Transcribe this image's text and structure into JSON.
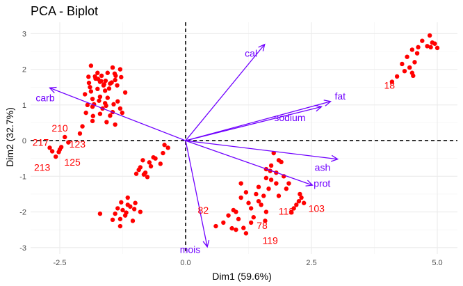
{
  "chart_data": {
    "type": "scatter",
    "title": "PCA - Biplot",
    "xlabel": "Dim1 (59.6%)",
    "ylabel": "Dim2 (32.7%)",
    "xlim": [
      -3.08,
      5.4
    ],
    "ylim": [
      -3.18,
      3.32
    ],
    "xticks": [
      -2.5,
      0,
      2.5,
      5
    ],
    "xtick_labels": [
      "-2.5",
      "0.0",
      "2.5",
      "5.0"
    ],
    "yticks": [
      -3,
      -2,
      -1,
      0,
      1,
      2,
      3
    ],
    "ytick_labels": [
      "-3",
      "-2",
      "-1",
      "0",
      "1",
      "2",
      "3"
    ],
    "grid": true,
    "reference_lines": {
      "x": 0,
      "y": 0,
      "style": "dashed"
    },
    "colors": {
      "points": "#ff0000",
      "variables": "#7000ff",
      "grid": "#ebebeb",
      "reference": "#000000"
    },
    "points": [
      [
        -1.3,
        2.0
      ],
      [
        -1.63,
        1.55
      ],
      [
        -1.88,
        2.1
      ],
      [
        -1.39,
        1.82
      ],
      [
        -1.84,
        0.69
      ],
      [
        -1.68,
        1.67
      ],
      [
        -1.28,
        1.78
      ],
      [
        -1.85,
        1.17
      ],
      [
        -1.93,
        1.79
      ],
      [
        -1.74,
        1.73
      ],
      [
        -1.7,
        1.23
      ],
      [
        -1.7,
        1.65
      ],
      [
        -1.8,
        1.8
      ],
      [
        -1.5,
        1.6
      ],
      [
        -1.6,
        1.4
      ],
      [
        -1.9,
        1.5
      ],
      [
        -1.4,
        1.7
      ],
      [
        -1.75,
        1.9
      ],
      [
        -1.55,
        1.2
      ],
      [
        -1.65,
        0.9
      ],
      [
        -1.45,
        0.8
      ],
      [
        -1.85,
        0.95
      ],
      [
        -1.95,
        1.0
      ],
      [
        -1.6,
        1.05
      ],
      [
        -1.35,
        1.1
      ],
      [
        -2.0,
        1.3
      ],
      [
        -1.2,
        1.35
      ],
      [
        -1.7,
        0.75
      ],
      [
        -1.5,
        0.7
      ],
      [
        -1.55,
        1.9
      ],
      [
        -1.45,
        2.05
      ],
      [
        -1.85,
        0.55
      ],
      [
        -2.05,
        0.4
      ],
      [
        -1.4,
        0.45
      ],
      [
        -1.3,
        0.9
      ],
      [
        -1.75,
        1.45
      ],
      [
        -1.62,
        1.58
      ],
      [
        -1.47,
        1.63
      ],
      [
        -1.88,
        1.38
      ],
      [
        -1.92,
        1.62
      ],
      [
        -1.67,
        1.82
      ],
      [
        -1.52,
        1.46
      ],
      [
        -1.36,
        1.55
      ],
      [
        -1.59,
        1.68
      ],
      [
        -1.82,
        1.02
      ],
      [
        -1.72,
        1.12
      ],
      [
        -1.58,
        0.98
      ],
      [
        -1.43,
        1.02
      ],
      [
        -2.1,
        0.2
      ],
      [
        -2.4,
        0.1
      ],
      [
        -1.98,
        0.78
      ],
      [
        -1.26,
        0.78
      ],
      [
        -1.57,
        0.52
      ],
      [
        -1.79,
        1.74
      ],
      [
        -1.41,
        1.88
      ],
      [
        -2.65,
        -0.3
      ],
      [
        -2.58,
        -0.45
      ],
      [
        -2.52,
        -0.32
      ],
      [
        -2.7,
        -0.2
      ],
      [
        -2.47,
        -0.18
      ],
      [
        -2.33,
        -0.05
      ],
      [
        -2.5,
        -0.25
      ],
      [
        -0.35,
        -0.2
      ],
      [
        -0.6,
        -0.5
      ],
      [
        -0.8,
        -0.9
      ],
      [
        -0.85,
        -0.55
      ],
      [
        -0.93,
        -0.82
      ],
      [
        -0.72,
        -0.61
      ],
      [
        -0.76,
        -1.02
      ],
      [
        -0.9,
        -0.75
      ],
      [
        -0.5,
        -0.65
      ],
      [
        -0.45,
        -0.35
      ],
      [
        -0.42,
        -0.12
      ],
      [
        -0.64,
        -0.47
      ],
      [
        -0.83,
        -0.95
      ],
      [
        -0.98,
        -0.93
      ],
      [
        -0.69,
        -0.72
      ],
      [
        -1.35,
        -1.9
      ],
      [
        -1.2,
        -2.1
      ],
      [
        -1.05,
        -2.25
      ],
      [
        -1.4,
        -2.05
      ],
      [
        -1.15,
        -1.8
      ],
      [
        -1.25,
        -1.95
      ],
      [
        -1.1,
        -1.85
      ],
      [
        -1.3,
        -2.2
      ],
      [
        -0.9,
        -2.0
      ],
      [
        -1.15,
        -1.6
      ],
      [
        -1.0,
        -1.75
      ],
      [
        -1.7,
        -2.05
      ],
      [
        -1.3,
        -2.4
      ],
      [
        -1.18,
        -2.02
      ],
      [
        -1.02,
        -1.92
      ],
      [
        -1.28,
        -1.73
      ],
      [
        -1.45,
        -2.22
      ],
      [
        0.6,
        -2.4
      ],
      [
        0.75,
        -2.3
      ],
      [
        0.85,
        -2.1
      ],
      [
        1.0,
        -2.5
      ],
      [
        1.15,
        -2.45
      ],
      [
        1.2,
        -2.6
      ],
      [
        1.05,
        -2.2
      ],
      [
        1.3,
        -1.9
      ],
      [
        1.35,
        -2.15
      ],
      [
        0.95,
        -1.95
      ],
      [
        1.1,
        -1.6
      ],
      [
        1.2,
        -1.45
      ],
      [
        1.4,
        -1.5
      ],
      [
        1.45,
        -1.7
      ],
      [
        1.5,
        -1.8
      ],
      [
        1.6,
        -2.0
      ],
      [
        1.25,
        -1.75
      ],
      [
        1.3,
        -2.3
      ],
      [
        1.0,
        -2.0
      ],
      [
        1.8,
        -0.9
      ],
      [
        1.7,
        -0.7
      ],
      [
        1.85,
        -0.55
      ],
      [
        1.75,
        -0.35
      ],
      [
        1.9,
        -0.6
      ],
      [
        1.6,
        -0.8
      ],
      [
        1.95,
        -1.0
      ],
      [
        1.8,
        -1.2
      ],
      [
        1.7,
        -1.1
      ],
      [
        1.6,
        -1.05
      ],
      [
        2.05,
        -1.2
      ],
      [
        2.0,
        -1.35
      ],
      [
        2.15,
        -1.9
      ],
      [
        2.2,
        -1.8
      ],
      [
        2.25,
        -1.7
      ],
      [
        2.3,
        -1.6
      ],
      [
        2.35,
        -1.75
      ],
      [
        1.65,
        -1.35
      ],
      [
        1.55,
        -1.55
      ],
      [
        1.45,
        -1.3
      ],
      [
        1.85,
        -1.55
      ],
      [
        2.1,
        -2.0
      ],
      [
        1.1,
        -1.2
      ],
      [
        0.92,
        -2.46
      ],
      [
        1.58,
        -2.25
      ],
      [
        2.27,
        -1.5
      ],
      [
        1.68,
        -0.85
      ],
      [
        4.85,
        2.95
      ],
      [
        4.7,
        2.8
      ],
      [
        4.9,
        2.75
      ],
      [
        5.0,
        2.6
      ],
      [
        4.6,
        2.45
      ],
      [
        4.5,
        2.55
      ],
      [
        4.4,
        2.35
      ],
      [
        4.55,
        2.2
      ],
      [
        4.45,
        2.05
      ],
      [
        4.5,
        1.9
      ],
      [
        4.35,
        1.95
      ],
      [
        4.2,
        1.8
      ],
      [
        4.1,
        1.65
      ],
      [
        4.3,
        2.15
      ],
      [
        4.8,
        2.65
      ],
      [
        4.95,
        2.72
      ],
      [
        4.87,
        2.62
      ],
      [
        4.62,
        2.62
      ],
      [
        4.52,
        1.82
      ]
    ],
    "point_labels": [
      {
        "text": "18",
        "x": 4.05,
        "y": 1.55
      },
      {
        "text": "210",
        "x": -2.5,
        "y": 0.35
      },
      {
        "text": "217",
        "x": -2.88,
        "y": -0.05
      },
      {
        "text": "123",
        "x": -2.15,
        "y": -0.1
      },
      {
        "text": "213",
        "x": -2.85,
        "y": -0.75
      },
      {
        "text": "125",
        "x": -2.25,
        "y": -0.6
      },
      {
        "text": "82",
        "x": 0.35,
        "y": -1.95
      },
      {
        "text": "113",
        "x": 2.0,
        "y": -1.98
      },
      {
        "text": "103",
        "x": 2.6,
        "y": -1.9
      },
      {
        "text": "78",
        "x": 1.52,
        "y": -2.38
      },
      {
        "text": "119",
        "x": 1.68,
        "y": -2.8
      }
    ],
    "variables": [
      {
        "name": "cal",
        "x": 1.57,
        "y": 2.7,
        "label_x": 1.3,
        "label_y": 2.45
      },
      {
        "name": "fat",
        "x": 2.88,
        "y": 1.1,
        "label_x": 3.07,
        "label_y": 1.25
      },
      {
        "name": "sodium",
        "x": 2.7,
        "y": 0.95,
        "label_x": 2.07,
        "label_y": 0.65
      },
      {
        "name": "carb",
        "x": -2.7,
        "y": 1.48,
        "label_x": -2.79,
        "label_y": 1.2
      },
      {
        "name": "ash",
        "x": 3.02,
        "y": -0.52,
        "label_x": 2.72,
        "label_y": -0.75
      },
      {
        "name": "prot",
        "x": 2.52,
        "y": -1.25,
        "label_x": 2.71,
        "label_y": -1.2
      },
      {
        "name": "mois",
        "x": 0.43,
        "y": -2.98,
        "label_x": 0.09,
        "label_y": -3.05
      }
    ]
  }
}
